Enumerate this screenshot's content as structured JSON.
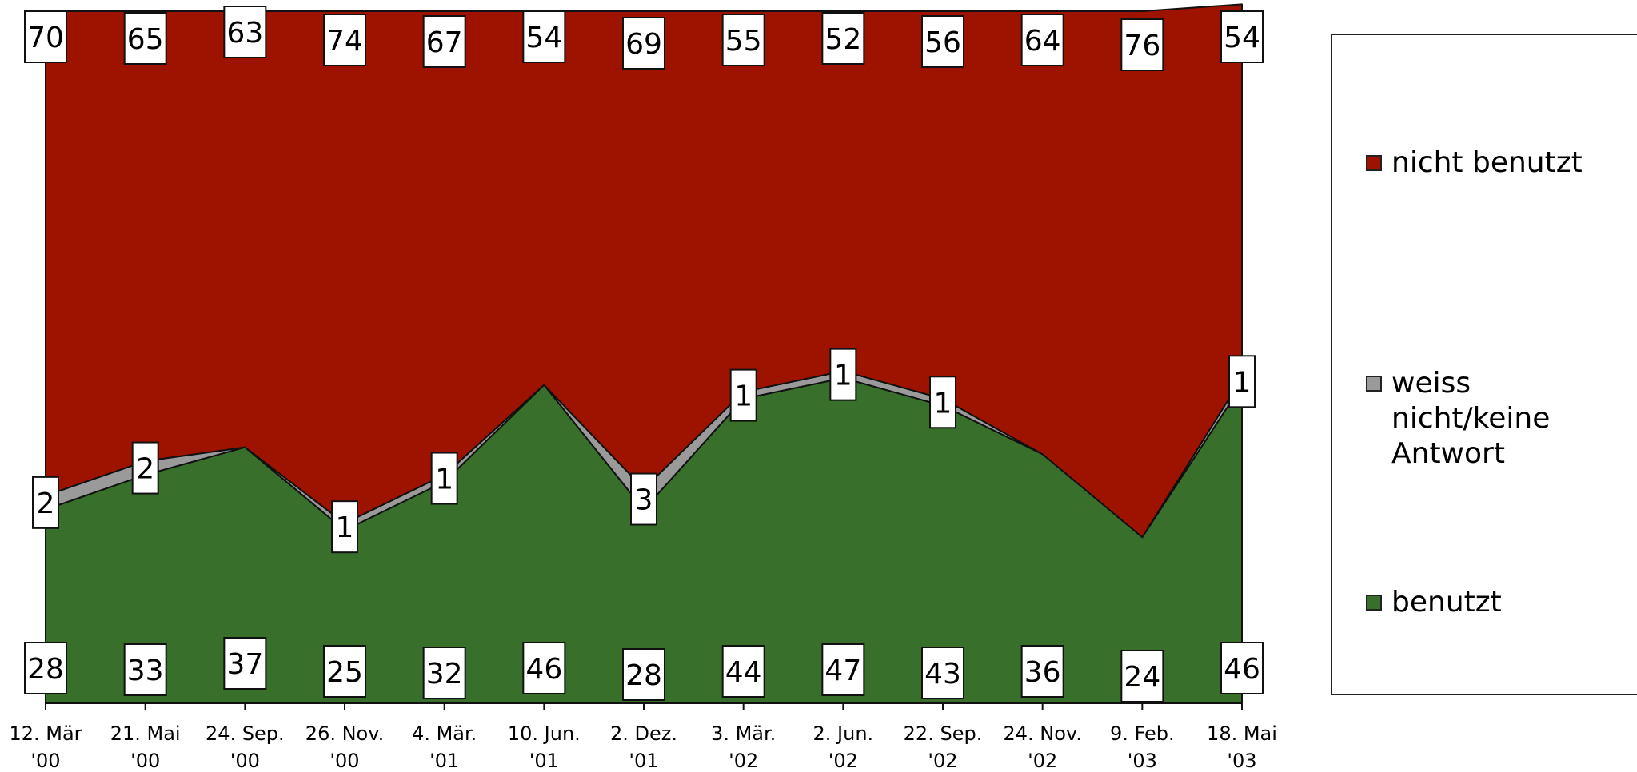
{
  "chart_data": {
    "type": "area",
    "stacked": true,
    "normalized": true,
    "categories": [
      [
        "12. Mär",
        "'00"
      ],
      [
        "21. Mai",
        "'00"
      ],
      [
        "24. Sep.",
        "'00"
      ],
      [
        "26. Nov.",
        "'00"
      ],
      [
        "4. Mär.",
        "'01"
      ],
      [
        "10. Jun.",
        "'01"
      ],
      [
        "2. Dez.",
        "'01"
      ],
      [
        "3. Mär.",
        "'02"
      ],
      [
        "2. Jun.",
        "'02"
      ],
      [
        "22. Sep.",
        "'02"
      ],
      [
        "24. Nov.",
        "'02"
      ],
      [
        "9. Feb.",
        "'03"
      ],
      [
        "18. Mai",
        "'03"
      ]
    ],
    "series": [
      {
        "name": "benutzt",
        "color": "#386f2a",
        "values": [
          28,
          33,
          37,
          25,
          32,
          46,
          28,
          44,
          47,
          43,
          36,
          24,
          46
        ]
      },
      {
        "name": "weiss nicht/keine Antwort",
        "color": "#9a9a9a",
        "values": [
          2,
          2,
          0,
          1,
          1,
          0,
          3,
          1,
          1,
          1,
          0,
          0,
          1
        ]
      },
      {
        "name": "nicht benutzt",
        "color": "#9e1300",
        "values": [
          70,
          65,
          63,
          74,
          67,
          54,
          69,
          55,
          52,
          56,
          64,
          76,
          54
        ]
      }
    ],
    "ylim": [
      0,
      100
    ],
    "grid": false,
    "legend_position": "right"
  },
  "legend": {
    "items": [
      {
        "label": "nicht benutzt",
        "color": "#9e1300"
      },
      {
        "label": "weiss nicht/keine Antwort",
        "color": "#9a9a9a"
      },
      {
        "label": "benutzt",
        "color": "#386f2a"
      }
    ]
  }
}
